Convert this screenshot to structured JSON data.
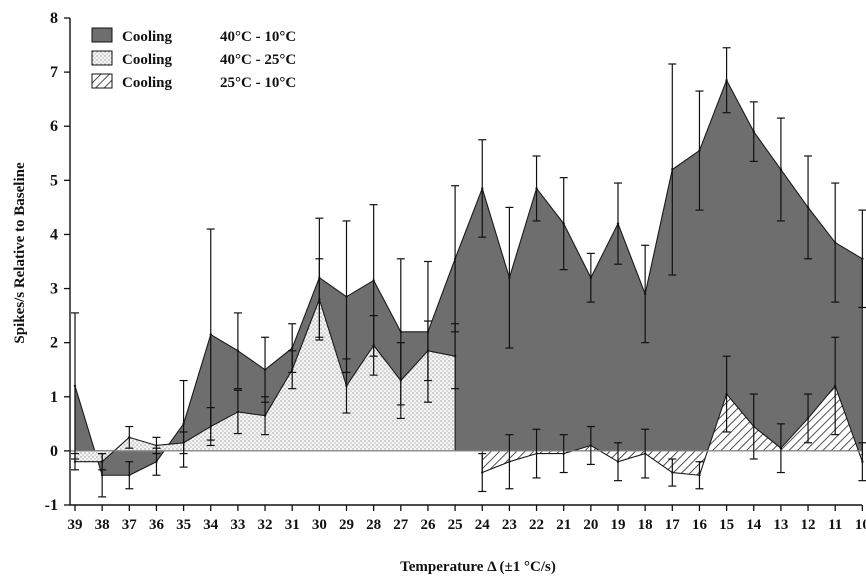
{
  "chart_data": {
    "type": "area",
    "title": "",
    "xlabel": "Temperature Δ (±1 °C/s)",
    "ylabel": "Spikes/s Relative to Baseline",
    "ylim": [
      -1,
      8
    ],
    "yticks": [
      "-1",
      "0",
      "1",
      "2",
      "3",
      "4",
      "5",
      "6",
      "7",
      "8"
    ],
    "categories": [
      "39",
      "38",
      "37",
      "36",
      "35",
      "34",
      "33",
      "32",
      "31",
      "30",
      "29",
      "28",
      "27",
      "26",
      "25",
      "24",
      "23",
      "22",
      "21",
      "20",
      "19",
      "18",
      "17",
      "16",
      "15",
      "14",
      "13",
      "12",
      "11",
      "10"
    ],
    "legend": {
      "position": "top-left",
      "entries": [
        {
          "label": "Cooling",
          "range": "40°C - 10°C"
        },
        {
          "label": "Cooling",
          "range": "40°C - 25°C"
        },
        {
          "label": "Cooling",
          "range": "25°C - 10°C"
        }
      ]
    },
    "series": [
      {
        "fill": "#6e6e6e",
        "pattern": "solid",
        "values": [
          1.2,
          -0.45,
          -0.45,
          -0.2,
          0.5,
          2.15,
          1.85,
          1.5,
          1.9,
          3.2,
          2.85,
          3.15,
          2.2,
          2.2,
          3.55,
          4.85,
          3.2,
          4.85,
          4.2,
          3.2,
          4.2,
          2.9,
          5.2,
          5.55,
          6.85,
          5.9,
          5.2,
          4.5,
          3.85,
          3.55
        ],
        "errors": [
          1.35,
          0.4,
          0.25,
          0.25,
          0.8,
          1.95,
          0.7,
          0.6,
          0.45,
          1.1,
          1.4,
          1.4,
          1.35,
          1.3,
          1.35,
          0.9,
          1.3,
          0.6,
          0.85,
          0.45,
          0.75,
          0.9,
          1.95,
          1.1,
          0.6,
          0.55,
          0.95,
          0.95,
          1.1,
          0.9
        ]
      },
      {
        "fill": "#f0f0f0",
        "pattern": "dotted",
        "values": [
          -0.2,
          -0.2,
          0.25,
          0.1,
          0.15,
          0.45,
          0.72,
          0.65,
          1.5,
          2.8,
          1.2,
          1.95,
          1.3,
          1.85,
          1.75,
          null,
          null,
          null,
          null,
          null,
          null,
          null,
          null,
          null,
          null,
          null,
          null,
          null,
          null,
          null
        ],
        "errors": [
          0.15,
          0.15,
          0.2,
          0.15,
          0.2,
          0.35,
          0.4,
          0.35,
          0.35,
          0.75,
          0.5,
          0.55,
          0.7,
          0.55,
          0.6,
          null,
          null,
          null,
          null,
          null,
          null,
          null,
          null,
          null,
          null,
          null,
          null,
          null,
          null,
          null
        ]
      },
      {
        "fill": "#ffffff",
        "pattern": "hatched",
        "values": [
          null,
          null,
          null,
          null,
          null,
          null,
          null,
          null,
          null,
          null,
          null,
          null,
          null,
          null,
          null,
          -0.4,
          -0.2,
          -0.05,
          -0.05,
          0.1,
          -0.2,
          -0.05,
          -0.4,
          -0.45,
          1.05,
          0.45,
          0.05,
          0.6,
          1.2,
          -0.2
        ],
        "errors": [
          null,
          null,
          null,
          null,
          null,
          null,
          null,
          null,
          null,
          null,
          null,
          null,
          null,
          null,
          null,
          0.35,
          0.5,
          0.45,
          0.35,
          0.35,
          0.35,
          0.45,
          0.25,
          0.25,
          0.7,
          0.6,
          0.45,
          0.45,
          0.9,
          0.35
        ]
      }
    ]
  }
}
